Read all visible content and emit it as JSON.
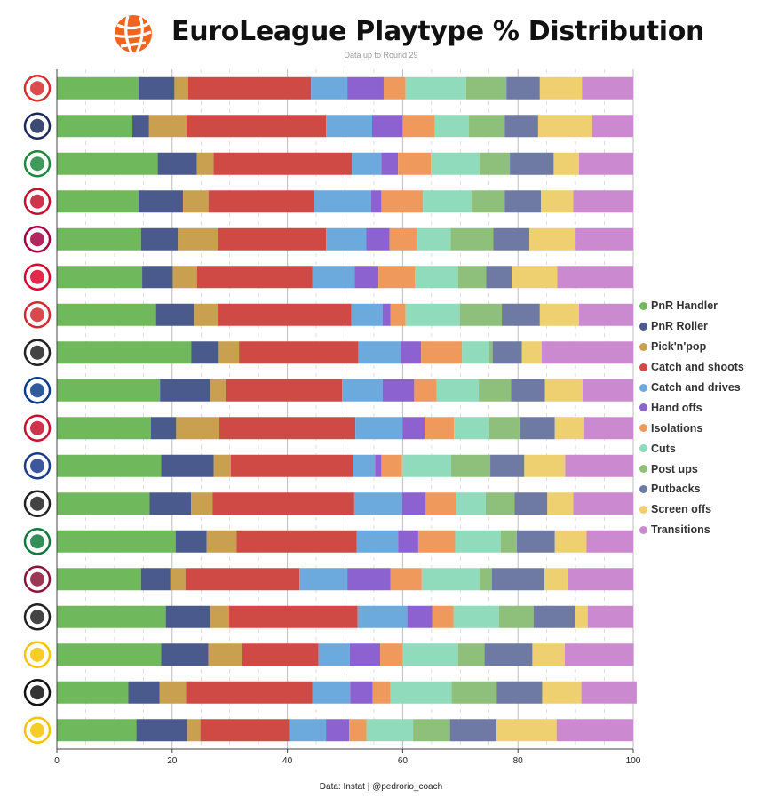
{
  "header": {
    "title": "EuroLeague Playtype % Distribution",
    "subtitle": "Data up to Round 29"
  },
  "footer": {
    "source": "Data: Instat | @pedrorio_coach"
  },
  "colors": {
    "logo_orange": "#f0641e"
  },
  "chart_data": {
    "type": "bar",
    "orientation": "horizontal",
    "stacked": true,
    "title": "EuroLeague Playtype % Distribution",
    "subtitle": "Data up to Round 29",
    "xlabel": "",
    "ylabel": "",
    "xlim": [
      0,
      100
    ],
    "xticks": [
      0,
      20,
      40,
      60,
      80,
      100
    ],
    "grid": true,
    "legend_position": "right",
    "categories": [
      "Olympiacos",
      "Fenerbahce Beko",
      "Panathinaikos",
      "AS Monaco",
      "FC Barcelona",
      "FC Bayern Munich",
      "Crvena Zvezda",
      "Paris Basketball",
      "Anadolu Efes",
      "EA7 Emporio Armani Milan",
      "Real Madrid",
      "Partizan",
      "Zalgiris",
      "Baskonia",
      "LDLC ASVEL",
      "Maccabi Tel Aviv",
      "Virtus Bologna",
      "ALBA Berlin"
    ],
    "series": [
      {
        "name": "PnR Handler",
        "color": "#70b85c",
        "values": [
          14.2,
          13.1,
          17.5,
          14.2,
          14.6,
          14.8,
          17.2,
          23.3,
          17.9,
          16.3,
          18.1,
          16.1,
          20.6,
          14.6,
          18.9,
          18.1,
          12.4,
          13.8
        ]
      },
      {
        "name": "PnR Roller",
        "color": "#4a5a8c",
        "values": [
          6.2,
          2.9,
          6.8,
          7.7,
          6.4,
          5.3,
          6.6,
          4.8,
          8.7,
          4.4,
          9.1,
          7.2,
          5.4,
          5.1,
          7.7,
          8.2,
          5.4,
          8.8
        ]
      },
      {
        "name": "Pick'n'pop",
        "color": "#c9a050",
        "values": [
          2.4,
          6.5,
          2.9,
          4.4,
          6.9,
          4.2,
          4.2,
          3.5,
          2.8,
          7.5,
          3.0,
          3.7,
          5.2,
          2.6,
          3.3,
          5.9,
          4.6,
          2.3
        ]
      },
      {
        "name": "Catch and shoots",
        "color": "#d04a45",
        "values": [
          21.3,
          24.2,
          24.0,
          18.3,
          18.8,
          20.0,
          23.1,
          20.7,
          20.1,
          23.6,
          21.2,
          24.6,
          20.8,
          19.8,
          22.3,
          13.2,
          21.9,
          15.4
        ]
      },
      {
        "name": "Catch and drives",
        "color": "#6caade",
        "values": [
          6.3,
          8.0,
          5.1,
          9.9,
          7.0,
          7.4,
          5.4,
          7.4,
          7.0,
          8.2,
          3.8,
          8.3,
          7.2,
          8.3,
          8.6,
          5.4,
          6.6,
          6.4
        ]
      },
      {
        "name": "Hand offs",
        "color": "#8b62cf",
        "values": [
          6.3,
          5.3,
          2.9,
          1.8,
          4.0,
          4.1,
          1.4,
          3.5,
          5.5,
          3.8,
          1.1,
          4.1,
          3.5,
          7.5,
          4.3,
          5.3,
          3.9,
          4.0
        ]
      },
      {
        "name": "Isolations",
        "color": "#ef9a5c",
        "values": [
          3.8,
          5.6,
          5.7,
          7.2,
          4.8,
          6.3,
          2.6,
          7.1,
          3.9,
          5.1,
          3.6,
          5.2,
          6.4,
          5.4,
          3.7,
          3.9,
          3.1,
          3.0
        ]
      },
      {
        "name": "Cuts",
        "color": "#8fdbbb",
        "values": [
          10.5,
          5.9,
          8.4,
          8.4,
          5.8,
          7.5,
          9.4,
          4.7,
          7.3,
          6.1,
          8.5,
          5.2,
          7.9,
          10.0,
          7.9,
          9.6,
          10.6,
          8.1
        ]
      },
      {
        "name": "Post ups",
        "color": "#8ec07c",
        "values": [
          7.0,
          6.2,
          5.3,
          5.8,
          7.4,
          4.9,
          7.3,
          0.6,
          5.6,
          5.4,
          6.8,
          5.0,
          2.8,
          2.2,
          6.0,
          4.6,
          7.8,
          6.4
        ]
      },
      {
        "name": "Putbacks",
        "color": "#6e7aa4",
        "values": [
          5.8,
          5.8,
          7.6,
          6.3,
          6.3,
          4.4,
          6.6,
          5.1,
          5.9,
          6.0,
          5.9,
          5.7,
          6.6,
          9.1,
          7.2,
          8.3,
          7.9,
          8.1
        ]
      },
      {
        "name": "Screen offs",
        "color": "#efd070",
        "values": [
          7.3,
          9.4,
          4.4,
          5.6,
          8.0,
          7.9,
          6.8,
          3.4,
          6.5,
          5.1,
          7.1,
          4.5,
          5.5,
          4.1,
          2.2,
          5.6,
          6.8,
          10.4
        ]
      },
      {
        "name": "Transitions",
        "color": "#cb8ad0",
        "values": [
          8.9,
          7.1,
          9.4,
          10.4,
          10.0,
          13.2,
          9.4,
          15.9,
          8.8,
          8.5,
          11.8,
          10.4,
          8.1,
          11.3,
          7.9,
          12.0,
          9.6,
          13.3
        ]
      }
    ]
  }
}
